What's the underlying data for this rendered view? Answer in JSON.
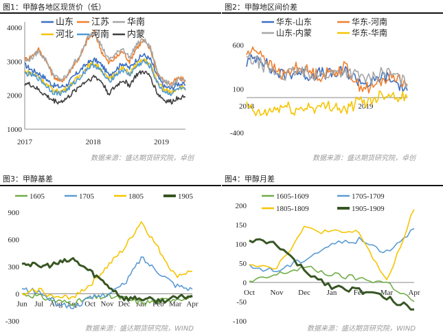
{
  "panels": [
    {
      "title": "图1：甲醇各地区现货价（低）",
      "source": "数据来源：盛达期货研究院，卓创",
      "colors": {
        "山东": "#3a6fc4",
        "江苏": "#ef7f2d",
        "华南": "#a6a6a6",
        "河北": "#f5c400",
        "河南": "#4f9ad6",
        "内蒙": "#3f3f3f"
      }
    },
    {
      "title": "图2：甲醇地区间价差",
      "source": "数据来源：盛达期货研究院，卓创",
      "colors": {
        "华东-山东": "#3a6fc4",
        "华东-河南": "#ef7f2d",
        "山东-内蒙": "#a6a6a6",
        "华东-华南": "#f5c400"
      }
    },
    {
      "title": "图3：甲醇基差",
      "source": "数据来源：盛达期货研究院，WIND",
      "colors": {
        "1605": "#70ad47",
        "1705": "#5b9bd5",
        "1805": "#f5c400",
        "1905": "#375623"
      }
    },
    {
      "title": "图4：甲醇月差",
      "source": "数据来源：盛达期货研究院，WIND",
      "colors": {
        "1605-1609": "#70ad47",
        "1705-1709": "#5b9bd5",
        "1805-1809": "#f5c400",
        "1905-1909": "#375623"
      }
    }
  ],
  "chart_data": [
    {
      "type": "line",
      "title": "",
      "x_ticks": [
        "2017",
        "2018",
        "2019"
      ],
      "x_range": [
        2017.0,
        2019.35
      ],
      "ylim": [
        1000,
        4000
      ],
      "y_ticks": [
        1000,
        2000,
        3000,
        4000
      ],
      "legend_placement": "top-center",
      "x": [
        2017.0,
        2017.1,
        2017.2,
        2017.3,
        2017.4,
        2017.5,
        2017.6,
        2017.7,
        2017.8,
        2017.9,
        2018.0,
        2018.1,
        2018.2,
        2018.3,
        2018.4,
        2018.5,
        2018.6,
        2018.7,
        2018.8,
        2018.9,
        2019.0,
        2019.1,
        2019.2,
        2019.3
      ],
      "series": [
        {
          "name": "山东",
          "values": [
            2900,
            2750,
            2650,
            2500,
            2300,
            2250,
            2300,
            2550,
            2750,
            2950,
            3050,
            2900,
            2600,
            2750,
            2950,
            2800,
            3050,
            3200,
            3050,
            2550,
            2250,
            2200,
            2350,
            2300
          ]
        },
        {
          "name": "江苏",
          "values": [
            3050,
            3150,
            3350,
            3050,
            2600,
            2400,
            2550,
            2900,
            3150,
            3650,
            3850,
            3300,
            2950,
            3100,
            3300,
            3000,
            3400,
            3600,
            3350,
            2650,
            2400,
            2350,
            2500,
            2450
          ]
        },
        {
          "name": "华南",
          "values": [
            3000,
            3100,
            3300,
            3050,
            2650,
            2450,
            2550,
            2950,
            3200,
            3700,
            3900,
            3450,
            3050,
            3200,
            3400,
            3100,
            3500,
            3650,
            3400,
            2700,
            2400,
            2300,
            2450,
            2400
          ]
        },
        {
          "name": "河北",
          "values": [
            2700,
            2650,
            2550,
            2350,
            2150,
            2100,
            2200,
            2400,
            2600,
            2850,
            2950,
            2750,
            2450,
            2650,
            2800,
            2650,
            2900,
            3050,
            2900,
            2400,
            2150,
            2100,
            2250,
            2200
          ]
        },
        {
          "name": "河南",
          "values": [
            2650,
            2600,
            2500,
            2300,
            2100,
            2050,
            2150,
            2350,
            2550,
            2800,
            2900,
            2700,
            2400,
            2600,
            2750,
            2600,
            2850,
            3000,
            2850,
            2350,
            2100,
            2050,
            2200,
            2150
          ]
        },
        {
          "name": "内蒙",
          "values": [
            2350,
            2300,
            2150,
            2000,
            1850,
            1800,
            1900,
            2100,
            2300,
            2450,
            2550,
            2400,
            2050,
            2250,
            2450,
            2300,
            2600,
            2700,
            2550,
            2050,
            1850,
            1800,
            1950,
            1950
          ]
        }
      ]
    },
    {
      "type": "line",
      "title": "",
      "x_ticks": [
        "2018",
        "2019"
      ],
      "x_range": [
        2018.0,
        2019.35
      ],
      "ylim": [
        -400,
        800
      ],
      "y_ticks": [
        -400,
        100,
        600
      ],
      "zero_line": 0,
      "legend_placement": "top-center",
      "x": [
        2018.0,
        2018.1,
        2018.2,
        2018.3,
        2018.4,
        2018.5,
        2018.6,
        2018.7,
        2018.8,
        2018.9,
        2019.0,
        2019.1,
        2019.2,
        2019.3
      ],
      "series": [
        {
          "name": "华东-山东",
          "values": [
            400,
            480,
            320,
            250,
            300,
            250,
            280,
            260,
            300,
            200,
            150,
            250,
            180,
            80
          ]
        },
        {
          "name": "华东-河南",
          "values": [
            500,
            550,
            350,
            250,
            350,
            300,
            250,
            300,
            350,
            150,
            100,
            200,
            250,
            150
          ]
        },
        {
          "name": "山东-内蒙",
          "values": [
            450,
            400,
            300,
            250,
            300,
            280,
            250,
            280,
            300,
            250,
            200,
            300,
            250,
            150
          ]
        },
        {
          "name": "华东-华南",
          "values": [
            -100,
            -200,
            -150,
            -100,
            -150,
            -100,
            -120,
            -80,
            -150,
            -50,
            -40,
            50,
            30,
            0
          ]
        }
      ]
    },
    {
      "type": "line",
      "title": "",
      "categories": [
        "Jun",
        "Jul",
        "Aug",
        "Sep",
        "Oct",
        "Nov",
        "Dec",
        "Jan",
        "Feb",
        "Mar",
        "Apr"
      ],
      "ylim": [
        -300,
        900
      ],
      "y_ticks": [
        -300,
        0,
        300,
        600,
        900
      ],
      "legend_placement": "top",
      "series": [
        {
          "name": "1605",
          "values": [
            0,
            -30,
            -80,
            -100,
            -50,
            -30,
            -50,
            -100,
            -80,
            -50,
            -40
          ]
        },
        {
          "name": "1705",
          "values": [
            50,
            20,
            -100,
            -150,
            -50,
            0,
            100,
            400,
            250,
            100,
            50
          ]
        },
        {
          "name": "1805",
          "values": [
            -20,
            50,
            -50,
            -30,
            100,
            300,
            500,
            800,
            500,
            200,
            250
          ]
        },
        {
          "name": "1905",
          "values": [
            350,
            300,
            330,
            380,
            250,
            100,
            -50,
            -50,
            -80,
            -50,
            -20
          ]
        }
      ]
    },
    {
      "type": "line",
      "title": "",
      "categories": [
        "Oct",
        "Nov",
        "Dec",
        "Jan",
        "Feb",
        "Mar",
        "Apr"
      ],
      "ylim": [
        -100,
        200
      ],
      "y_ticks": [
        -100,
        -50,
        0,
        50,
        100,
        150,
        200
      ],
      "legend_placement": "top",
      "series": [
        {
          "name": "1605-1609",
          "values": [
            0,
            20,
            40,
            20,
            10,
            0,
            -50
          ]
        },
        {
          "name": "1705-1709",
          "values": [
            40,
            30,
            60,
            100,
            110,
            80,
            140
          ]
        },
        {
          "name": "1805-1809",
          "values": [
            50,
            40,
            140,
            130,
            130,
            0,
            190
          ]
        },
        {
          "name": "1905-1909",
          "values": [
            110,
            100,
            30,
            -10,
            -20,
            -40,
            -70
          ]
        }
      ]
    }
  ]
}
